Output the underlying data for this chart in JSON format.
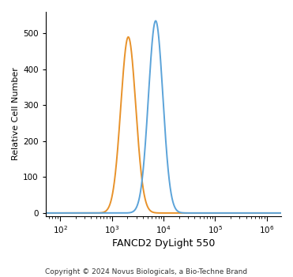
{
  "xlabel": "FANCD2 DyLight 550",
  "ylabel": "Relative Cell Number",
  "copyright": "Copyright © 2024 Novus Biologicals, a Bio-Techne Brand",
  "xlim_log": [
    1.72,
    6.28
  ],
  "ylim": [
    -8,
    560
  ],
  "yticks": [
    0,
    100,
    200,
    300,
    400,
    500
  ],
  "orange_color": "#E8922A",
  "blue_color": "#5BA3D9",
  "orange_peak_log": 3.32,
  "orange_peak_height": 490,
  "orange_sigma_log": 0.145,
  "blue_peak_log": 3.85,
  "blue_peak_height": 535,
  "blue_sigma_log": 0.14,
  "line_width": 1.4,
  "background_color": "#ffffff",
  "axis_color": "#000000",
  "tick_labelsize": 7.5,
  "xlabel_fontsize": 9,
  "ylabel_fontsize": 8,
  "copyright_fontsize": 6.5
}
